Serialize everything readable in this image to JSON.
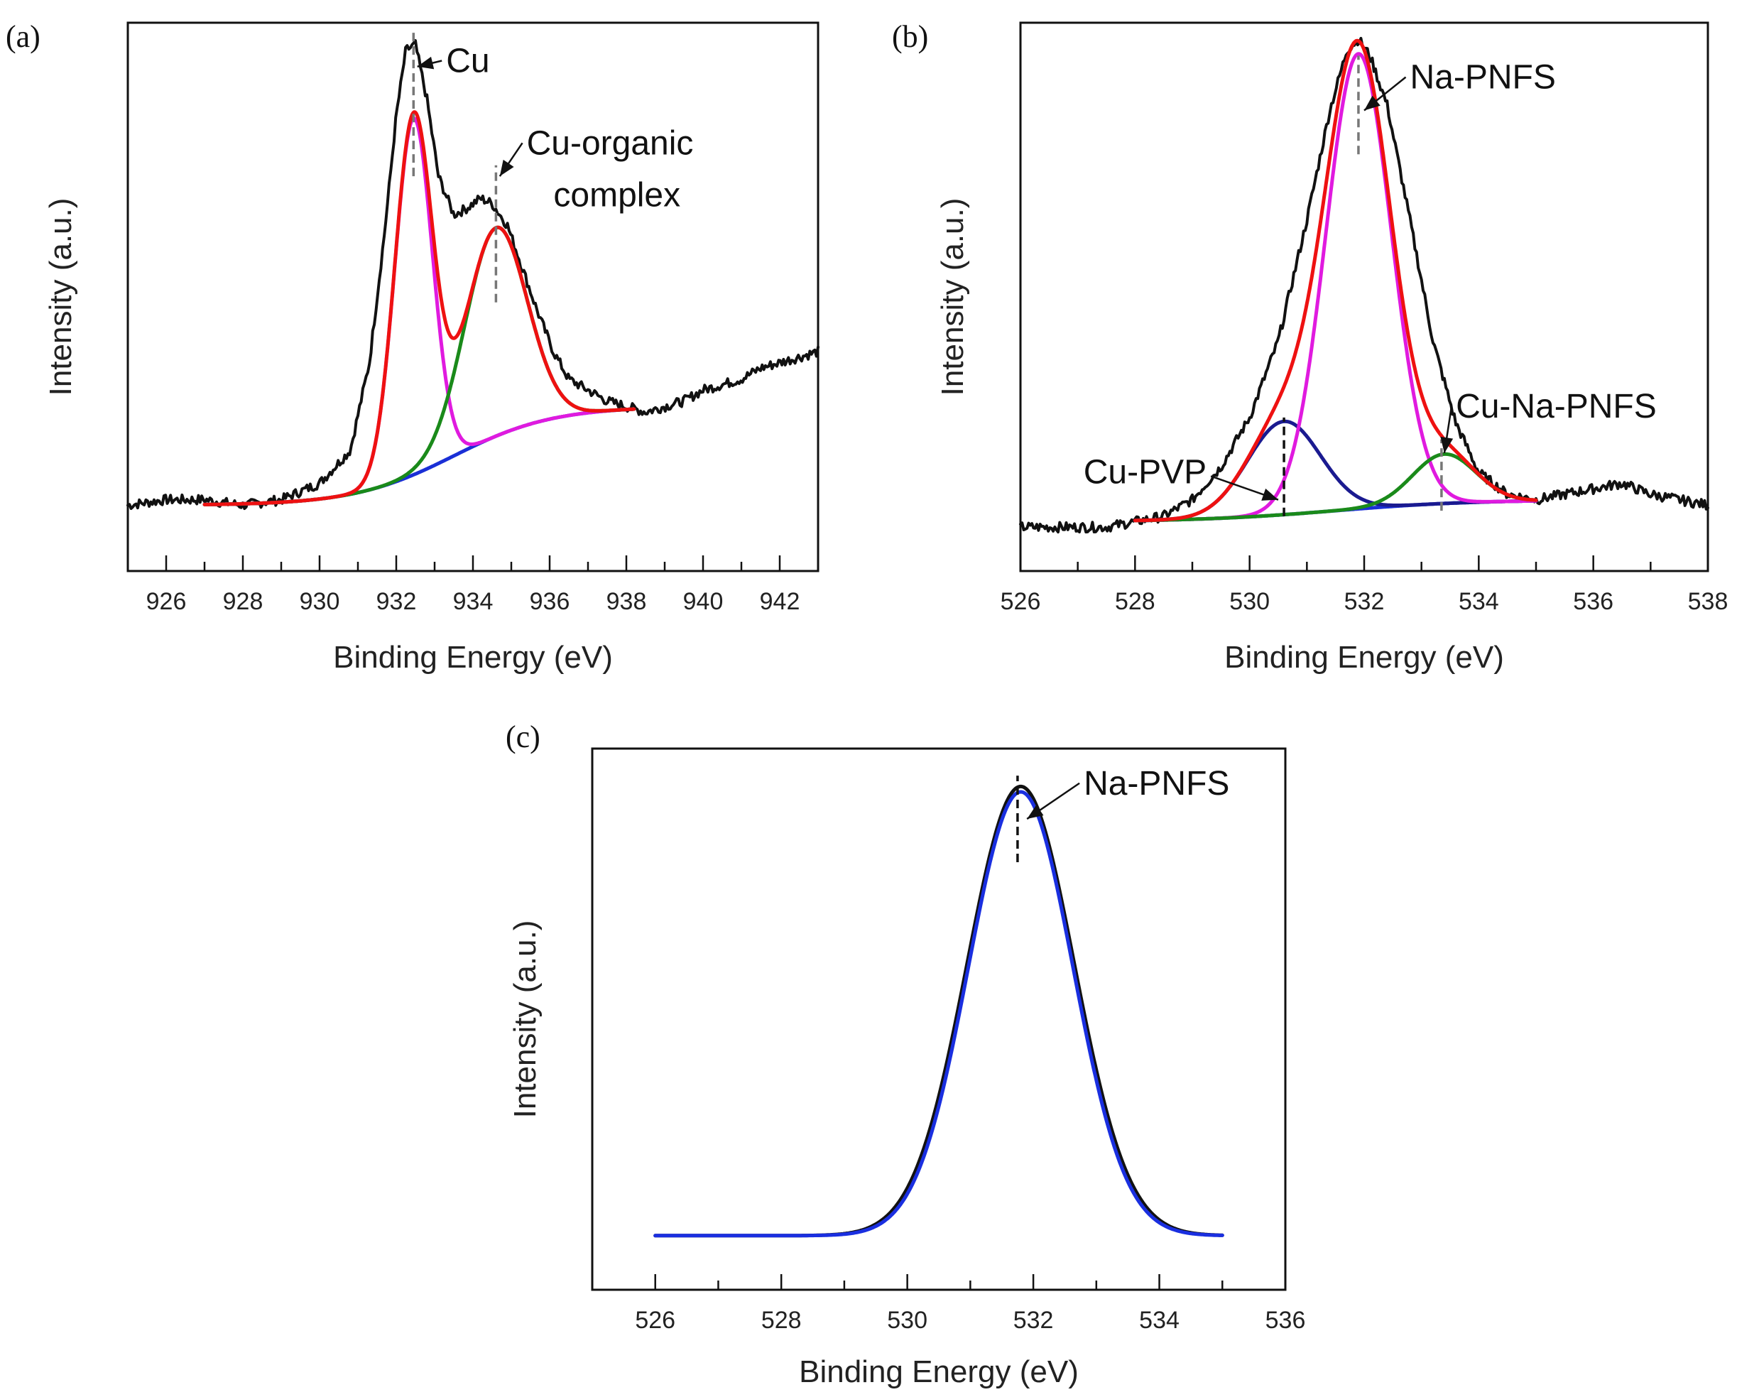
{
  "chart_data": [
    {
      "type": "line",
      "panel_label": "(a)",
      "xlabel": "Binding Energy (eV)",
      "ylabel": "Intensity (a.u.)",
      "xlim": [
        925,
        943
      ],
      "ylim": [
        0,
        1
      ],
      "xticks": [
        926,
        928,
        930,
        932,
        934,
        936,
        938,
        940,
        942
      ],
      "series": [
        {
          "name": "raw",
          "color": "#111111",
          "kind": "raw",
          "xrange": [
            925,
            943
          ],
          "points": [
            [
              925,
              0.12
            ],
            [
              926,
              0.13
            ],
            [
              927,
              0.13
            ],
            [
              928,
              0.12
            ],
            [
              929,
              0.13
            ],
            [
              930,
              0.16
            ],
            [
              930.8,
              0.22
            ],
            [
              931.3,
              0.38
            ],
            [
              931.7,
              0.62
            ],
            [
              932,
              0.83
            ],
            [
              932.25,
              0.95
            ],
            [
              932.5,
              0.96
            ],
            [
              932.8,
              0.86
            ],
            [
              933.1,
              0.72
            ],
            [
              933.5,
              0.65
            ],
            [
              933.8,
              0.66
            ],
            [
              934.2,
              0.68
            ],
            [
              934.5,
              0.67
            ],
            [
              934.9,
              0.63
            ],
            [
              935.3,
              0.55
            ],
            [
              935.7,
              0.47
            ],
            [
              936.1,
              0.4
            ],
            [
              936.5,
              0.35
            ],
            [
              937,
              0.33
            ],
            [
              937.5,
              0.31
            ],
            [
              938,
              0.3
            ],
            [
              938.5,
              0.29
            ],
            [
              939,
              0.3
            ],
            [
              939.5,
              0.31
            ],
            [
              940,
              0.33
            ],
            [
              940.5,
              0.34
            ],
            [
              941,
              0.35
            ],
            [
              941.5,
              0.37
            ],
            [
              942,
              0.38
            ],
            [
              942.5,
              0.39
            ],
            [
              943,
              0.4
            ]
          ]
        },
        {
          "name": "background",
          "color": "#1a2fd6",
          "kind": "bg",
          "xrange": [
            927,
            938.2
          ],
          "y0": 0.12,
          "y1": 0.3,
          "center": 933.5,
          "width": 1.3
        },
        {
          "name": "Cu",
          "color": "#e01adf",
          "kind": "peak",
          "xrange": [
            927,
            938.2
          ],
          "center": 932.45,
          "height": 0.65,
          "fwhm": 1.15
        },
        {
          "name": "Cu-organic complex",
          "color": "#1a8a1a",
          "kind": "peak",
          "xrange": [
            927,
            938.2
          ],
          "center": 934.6,
          "height": 0.38,
          "fwhm": 1.9
        },
        {
          "name": "envelope",
          "color": "#ee1111",
          "kind": "sum",
          "xrange": [
            927,
            938.2
          ]
        }
      ],
      "markers": [
        {
          "x": 932.45,
          "y0": 0.72,
          "y1": 0.99,
          "color": "#777777"
        },
        {
          "x": 934.6,
          "y0": 0.49,
          "y1": 0.74,
          "color": "#777777"
        }
      ],
      "annotations": [
        {
          "text": "Cu",
          "text_x": 933.3,
          "text_y": 0.91,
          "arrow_to_x": 932.55,
          "arrow_to_y": 0.92
        },
        {
          "text": "Cu-organic",
          "text_x": 935.4,
          "text_y": 0.76,
          "arrow_to_x": 934.7,
          "arrow_to_y": 0.72
        },
        {
          "text": "complex",
          "text_x": 936.1,
          "text_y": 0.665
        }
      ]
    },
    {
      "type": "line",
      "panel_label": "(b)",
      "xlabel": "Binding Energy (eV)",
      "ylabel": "Intensity (a.u.)",
      "xlim": [
        526,
        538
      ],
      "ylim": [
        0,
        1
      ],
      "xticks": [
        526,
        528,
        530,
        532,
        534,
        536,
        538
      ],
      "series": [
        {
          "name": "raw",
          "color": "#111111",
          "kind": "raw",
          "xrange": [
            526,
            538
          ],
          "points": [
            [
              526,
              0.08
            ],
            [
              527,
              0.08
            ],
            [
              527.5,
              0.08
            ],
            [
              528,
              0.09
            ],
            [
              528.5,
              0.1
            ],
            [
              529,
              0.13
            ],
            [
              529.5,
              0.19
            ],
            [
              530,
              0.28
            ],
            [
              530.5,
              0.42
            ],
            [
              531,
              0.64
            ],
            [
              531.4,
              0.84
            ],
            [
              531.7,
              0.95
            ],
            [
              531.9,
              0.97
            ],
            [
              532.1,
              0.94
            ],
            [
              532.4,
              0.85
            ],
            [
              532.8,
              0.64
            ],
            [
              533.2,
              0.42
            ],
            [
              533.6,
              0.27
            ],
            [
              534,
              0.18
            ],
            [
              534.5,
              0.14
            ],
            [
              535,
              0.13
            ],
            [
              535.5,
              0.14
            ],
            [
              536,
              0.15
            ],
            [
              536.5,
              0.16
            ],
            [
              537,
              0.14
            ],
            [
              537.5,
              0.13
            ],
            [
              538,
              0.12
            ]
          ]
        },
        {
          "name": "background",
          "color": "#1a2fd6",
          "kind": "bg",
          "xrange": [
            528,
            535
          ],
          "y0": 0.09,
          "y1": 0.13,
          "center": 531.5,
          "width": 1.2
        },
        {
          "name": "Cu-PVP",
          "color": "#1a1a90",
          "kind": "peak",
          "xrange": [
            528,
            535
          ],
          "center": 530.6,
          "height": 0.17,
          "fwhm": 1.5
        },
        {
          "name": "Na-PNFS",
          "color": "#e01adf",
          "kind": "peak",
          "xrange": [
            528,
            535
          ],
          "center": 531.9,
          "height": 0.83,
          "fwhm": 1.35
        },
        {
          "name": "Cu-Na-PNFS",
          "color": "#1a8a1a",
          "kind": "peak",
          "xrange": [
            528,
            535
          ],
          "center": 533.4,
          "height": 0.09,
          "fwhm": 1.3
        },
        {
          "name": "envelope",
          "color": "#ee1111",
          "kind": "sum",
          "xrange": [
            528,
            535
          ]
        }
      ],
      "markers": [
        {
          "x": 531.9,
          "y0": 0.76,
          "y1": 0.94,
          "color": "#777777"
        },
        {
          "x": 530.6,
          "y0": 0.1,
          "y1": 0.28,
          "color": "#111111"
        },
        {
          "x": 533.35,
          "y0": 0.11,
          "y1": 0.24,
          "color": "#777777"
        }
      ],
      "annotations": [
        {
          "text": "Na-PNFS",
          "text_x": 532.8,
          "text_y": 0.88,
          "arrow_to_x": 532.0,
          "arrow_to_y": 0.84
        },
        {
          "text": "Cu-PVP",
          "text_x": 527.1,
          "text_y": 0.16,
          "arrow_to_x": 530.5,
          "arrow_to_y": 0.13
        },
        {
          "text": "Cu-Na-PNFS",
          "text_x": 533.6,
          "text_y": 0.28,
          "arrow_to_x": 533.4,
          "arrow_to_y": 0.215
        }
      ]
    },
    {
      "type": "line",
      "panel_label": "(c)",
      "xlabel": "Binding Energy (eV)",
      "ylabel": "Intensity (a.u.)",
      "xlim": [
        525,
        536
      ],
      "ylim": [
        0,
        1
      ],
      "xticks": [
        526,
        528,
        530,
        532,
        534,
        536
      ],
      "series": [
        {
          "name": "raw",
          "color": "#111111",
          "kind": "peak",
          "xrange": [
            526,
            535
          ],
          "baseline": 0.1,
          "center": 531.8,
          "height": 0.83,
          "fwhm": 2.0
        },
        {
          "name": "fit",
          "color": "#1a2fe0",
          "kind": "peak",
          "xrange": [
            526,
            535
          ],
          "baseline": 0.1,
          "center": 531.8,
          "height": 0.82,
          "fwhm": 1.95
        }
      ],
      "markers": [
        {
          "x": 531.75,
          "y0": 0.79,
          "y1": 0.95,
          "color": "#111111"
        }
      ],
      "annotations": [
        {
          "text": "Na-PNFS",
          "text_x": 532.8,
          "text_y": 0.915,
          "arrow_to_x": 531.9,
          "arrow_to_y": 0.87
        }
      ]
    }
  ]
}
